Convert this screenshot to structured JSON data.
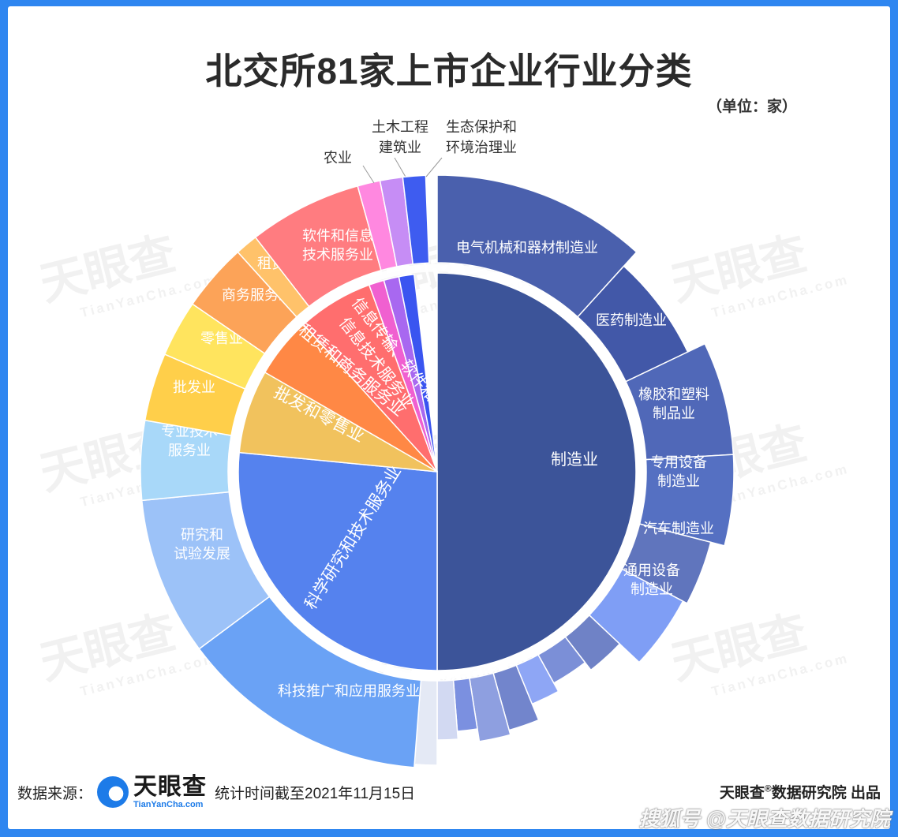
{
  "title": "北交所81家上市企业行业分类",
  "unit_label": "（单位：家）",
  "watermark": {
    "cn": "天眼查",
    "en": "TianYanCha.com"
  },
  "footer": {
    "source_label": "数据来源：",
    "logo_cn": "天眼查",
    "logo_en": "TianYanCha.com",
    "stat_time": "统计时间截至2021年11月15日",
    "producer": "天眼查",
    "producer_suffix": "数据研究院 出品",
    "registered_mark": "®"
  },
  "sohu_watermark": "搜狐号 @天眼查数据研究院",
  "chart_data": {
    "type": "sunburst",
    "title": "北交所81家上市企业行业分类",
    "unit": "家",
    "total": 81,
    "inner": [
      {
        "name": "制造业",
        "value": 40.5,
        "color": "#3c5499"
      },
      {
        "name": "科学研究和技术服务业",
        "value": 21.5,
        "color": "#5582ee"
      },
      {
        "name": "批发和零售业",
        "value": 5.5,
        "color": "#f1c25d"
      },
      {
        "name": "租赁和商务服务业",
        "value": 4,
        "color": "#ff8845"
      },
      {
        "name": "信息传输、软件和信息技术服务业",
        "value": 5,
        "color": "#ff6e6e"
      },
      {
        "name": "",
        "value": 1,
        "color": "#f060d0"
      },
      {
        "name": "",
        "value": 1,
        "color": "#a868f0"
      },
      {
        "name": "",
        "value": 1,
        "color": "#3a55f0"
      }
    ],
    "outer": [
      {
        "name": "电气机械和器材制造业",
        "value": 9.5,
        "color": "#4a60ad"
      },
      {
        "name": "医药制造业",
        "value": 5,
        "color": "#4258a8"
      },
      {
        "name": "橡胶和塑料制品业",
        "value": 5,
        "color": "#5068b8"
      },
      {
        "name": "专用设备制造业",
        "value": 4,
        "color": "#5570c2"
      },
      {
        "name": "汽车制造业",
        "value": 3,
        "color": "#6075bd"
      },
      {
        "name": "通用设备制造业",
        "value": 3.5,
        "color": "#7f9ef5"
      },
      {
        "name": "",
        "value": 2,
        "color": "#6f82c6"
      },
      {
        "name": "",
        "value": 2,
        "color": "#7b8fd7"
      },
      {
        "name": "",
        "value": 1.5,
        "color": "#8ea6f5"
      },
      {
        "name": "",
        "value": 1.5,
        "color": "#7285cc"
      },
      {
        "name": "",
        "value": 1.5,
        "color": "#8e9fe0"
      },
      {
        "name": "",
        "value": 1,
        "color": "#7b90e0"
      },
      {
        "name": "",
        "value": 1,
        "color": "#d2d9f2"
      },
      {
        "name": "",
        "value": 1,
        "color": "#e4e9f5"
      },
      {
        "name": "科技推广和应用服务业",
        "value": 11,
        "color": "#6aa2f5"
      },
      {
        "name": "研究和试验发展",
        "value": 7,
        "color": "#9cc2f8"
      },
      {
        "name": "专业技术服务业",
        "value": 3.5,
        "color": "#a8d8f9"
      },
      {
        "name": "批发业",
        "value": 3,
        "color": "#ffcf4a"
      },
      {
        "name": "零售业",
        "value": 2.5,
        "color": "#ffe45e"
      },
      {
        "name": "商务服务业",
        "value": 3,
        "color": "#fca358"
      },
      {
        "name": "租赁业",
        "value": 1,
        "color": "#ffc26a"
      },
      {
        "name": "软件和信息技术服务业",
        "value": 5,
        "color": "#ff7c80"
      },
      {
        "name": "农业",
        "value": 1,
        "color": "#ff88e0"
      },
      {
        "name": "土木工程建筑业",
        "value": 1,
        "color": "#c68df5"
      },
      {
        "name": "生态保护和环境治理业",
        "value": 1,
        "color": "#3e5cf0"
      }
    ]
  }
}
